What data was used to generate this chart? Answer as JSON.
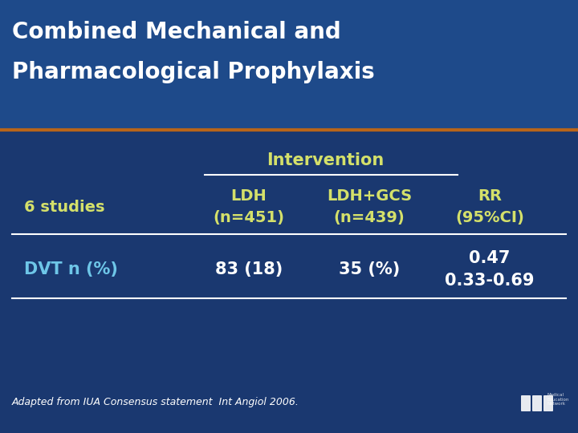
{
  "title_line1": "Combined Mechanical and",
  "title_line2": "Pharmacological Prophylaxis",
  "bg_color": "#1a3870",
  "title_bg_color": "#1e4a8a",
  "title_text_color": "#ffffff",
  "header_text_color": "#d4e06a",
  "body_text_color": "#ffffff",
  "dvt_text_color": "#6ec6e8",
  "intervention_label": "Intervention",
  "col1_header_line1": "LDH",
  "col1_header_line2": "(n=451)",
  "col2_header_line1": "LDH+GCS",
  "col2_header_line2": "(n=439)",
  "col3_header_line1": "RR",
  "col3_header_line2": "(95%CI)",
  "row_label": "6 studies",
  "data_row_label": "DVT n (%)",
  "data_col1": "83 (18)",
  "data_col2": "35 (%)",
  "data_col3_line1": "0.47",
  "data_col3_line2": "0.33-0.69",
  "footer": "Adapted from IUA Consensus statement  Int Angiol 2006.",
  "orange_line_color": "#b8651a",
  "title_fontsize": 20,
  "header_fontsize": 14,
  "body_fontsize": 15,
  "footer_fontsize": 9
}
